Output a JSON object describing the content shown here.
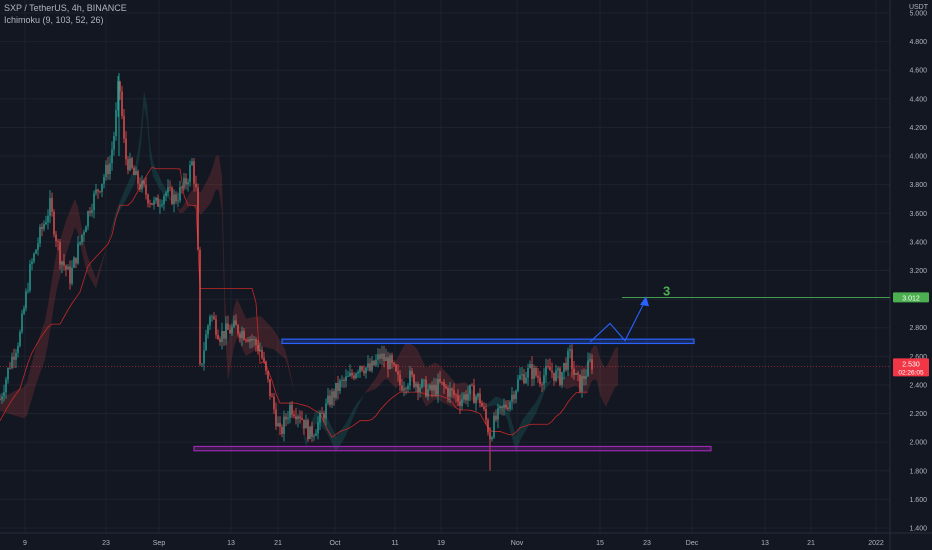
{
  "header": {
    "title": "SXP / TetherUS, 4h, BINANCE",
    "indicator": "Ichimoku (9, 103, 52, 26)",
    "unit": "USDT"
  },
  "chart_data": {
    "type": "candlestick",
    "ylim": [
      1.4,
      5.0
    ],
    "y_ticks": [
      "5.000",
      "4.800",
      "4.600",
      "4.400",
      "4.200",
      "4.000",
      "3.800",
      "3.600",
      "3.400",
      "3.200",
      "3.000",
      "2.800",
      "2.600",
      "2.400",
      "2.200",
      "2.000",
      "1.800",
      "1.600",
      "1.400"
    ],
    "x_ticks": [
      "9",
      "23",
      "Sep",
      "13",
      "21",
      "Oct",
      "11",
      "19",
      "Nov",
      "15",
      "23",
      "Dec",
      "13",
      "21",
      "2022"
    ],
    "price_path": [
      [
        0,
        2.3
      ],
      [
        10,
        2.55
      ],
      [
        20,
        2.75
      ],
      [
        30,
        3.2
      ],
      [
        40,
        3.45
      ],
      [
        50,
        3.65
      ],
      [
        60,
        3.3
      ],
      [
        70,
        3.15
      ],
      [
        80,
        3.4
      ],
      [
        90,
        3.65
      ],
      [
        100,
        3.8
      ],
      [
        110,
        3.95
      ],
      [
        115,
        4.2
      ],
      [
        119,
        4.55
      ],
      [
        125,
        4.0
      ],
      [
        135,
        3.85
      ],
      [
        145,
        3.75
      ],
      [
        155,
        3.65
      ],
      [
        165,
        3.75
      ],
      [
        175,
        3.7
      ],
      [
        185,
        3.8
      ],
      [
        192,
        3.95
      ],
      [
        197,
        3.7
      ],
      [
        200,
        2.5
      ],
      [
        210,
        2.9
      ],
      [
        220,
        2.75
      ],
      [
        235,
        2.8
      ],
      [
        248,
        2.75
      ],
      [
        260,
        2.65
      ],
      [
        270,
        2.35
      ],
      [
        280,
        2.05
      ],
      [
        290,
        2.25
      ],
      [
        300,
        2.2
      ],
      [
        310,
        2.05
      ],
      [
        320,
        2.15
      ],
      [
        330,
        2.3
      ],
      [
        340,
        2.4
      ],
      [
        350,
        2.45
      ],
      [
        360,
        2.55
      ],
      [
        370,
        2.5
      ],
      [
        380,
        2.6
      ],
      [
        390,
        2.55
      ],
      [
        400,
        2.4
      ],
      [
        410,
        2.45
      ],
      [
        420,
        2.4
      ],
      [
        430,
        2.35
      ],
      [
        440,
        2.4
      ],
      [
        450,
        2.35
      ],
      [
        460,
        2.3
      ],
      [
        470,
        2.35
      ],
      [
        480,
        2.3
      ],
      [
        490,
        2.05
      ],
      [
        495,
        2.15
      ],
      [
        500,
        2.2
      ],
      [
        510,
        2.3
      ],
      [
        520,
        2.45
      ],
      [
        530,
        2.5
      ],
      [
        540,
        2.45
      ],
      [
        550,
        2.5
      ],
      [
        560,
        2.45
      ],
      [
        565,
        2.55
      ],
      [
        570,
        2.6
      ],
      [
        575,
        2.45
      ],
      [
        580,
        2.4
      ],
      [
        590,
        2.55
      ]
    ],
    "current_price": "2.530",
    "countdown": "02:26:05",
    "target_price": "3.012",
    "annotation_label": "3",
    "colors": {
      "up": "#26a69a",
      "down": "#ef5350",
      "support": "#9c27b0",
      "resistance": "#2962ff",
      "target": "#4caf50",
      "price_line": "#f23645"
    }
  }
}
